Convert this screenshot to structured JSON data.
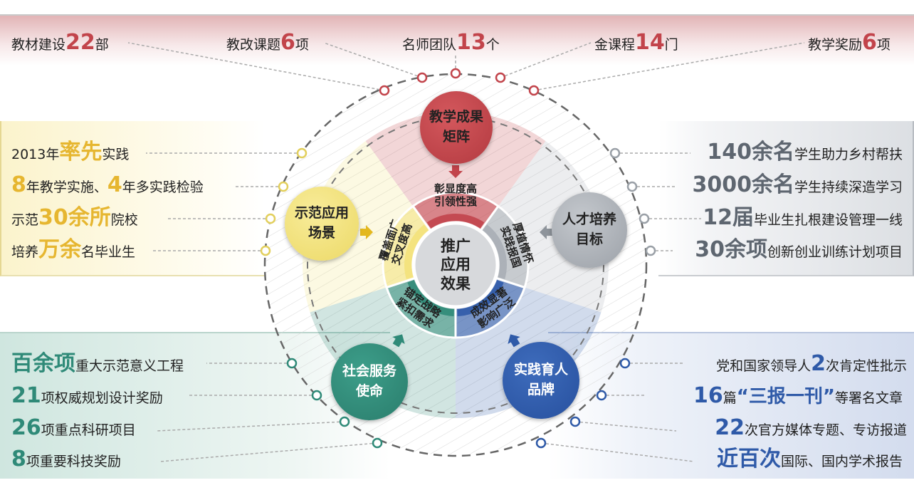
{
  "colors": {
    "red": "#c2444b",
    "yellow": "#f3e27a",
    "gray": "#a9aeb5",
    "green": "#2f8a78",
    "blue": "#2f5aa8"
  },
  "center": {
    "label_lines": [
      "推广",
      "应用",
      "效果"
    ]
  },
  "nodes": {
    "teaching": {
      "lines": [
        "教学成果",
        "矩阵"
      ]
    },
    "demo": {
      "lines": [
        "示范应用",
        "场景"
      ]
    },
    "talent": {
      "lines": [
        "人才培养",
        "目标"
      ]
    },
    "service": {
      "lines": [
        "社会服务",
        "使命"
      ]
    },
    "practice": {
      "lines": [
        "实践育人",
        "品牌"
      ]
    }
  },
  "ring": {
    "top": [
      "彰显度高",
      "引领性强"
    ],
    "left": [
      "覆盖面广",
      "交叉度高"
    ],
    "right": [
      "厚植情怀",
      "实践报国"
    ],
    "bottom_left": [
      "锚定战略",
      "紧扣需求"
    ],
    "bottom_right": [
      "成效显著",
      "影响广泛"
    ]
  },
  "top_stats": [
    {
      "pre": "教材建设",
      "num": "22",
      "suf": "部"
    },
    {
      "pre": "教改课题",
      "num": "6",
      "suf": "项"
    },
    {
      "pre": "名师团队",
      "num": "13",
      "suf": "个"
    },
    {
      "pre": "金课程",
      "num": "14",
      "suf": "门"
    },
    {
      "pre": "教学奖励",
      "num": "6",
      "suf": "项"
    }
  ],
  "left_stats": [
    {
      "pre": "2013年",
      "num": "率先",
      "suf": "实践"
    },
    {
      "pre": "",
      "num": "8",
      "suf": "年教学实施、",
      "num2": "4",
      "suf2": "年多实践检验"
    },
    {
      "pre": "示范",
      "num": "30余所",
      "suf": "院校"
    },
    {
      "pre": "培养",
      "num": "万余",
      "suf": "名毕业生"
    }
  ],
  "right_stats": [
    {
      "num": "140余名",
      "suf": "学生助力乡村帮扶"
    },
    {
      "num": "3000余名",
      "suf": "学生持续深造学习"
    },
    {
      "num": "12届",
      "suf": "毕业生扎根建设管理一线"
    },
    {
      "num": "30余项",
      "suf": "创新创业训练计划项目"
    }
  ],
  "bl_stats": [
    {
      "num": "百余项",
      "suf": "重大示范意义工程"
    },
    {
      "num": "21",
      "suf": "项权威规划设计奖励"
    },
    {
      "num": "26",
      "suf": "项重点科研项目"
    },
    {
      "num": "8",
      "suf": "项重要科技奖励"
    }
  ],
  "br_stats": [
    {
      "pre": "党和国家领导人",
      "num": "2",
      "suf": "次肯定性批示"
    },
    {
      "num": "16",
      "suf": "篇",
      "mid": "“三报一刊”",
      "suf2": "等署名文章"
    },
    {
      "num": "22",
      "suf": "次官方媒体专题、专访报道"
    },
    {
      "num": "近百次",
      "suf": "国际、国内学术报告"
    }
  ]
}
